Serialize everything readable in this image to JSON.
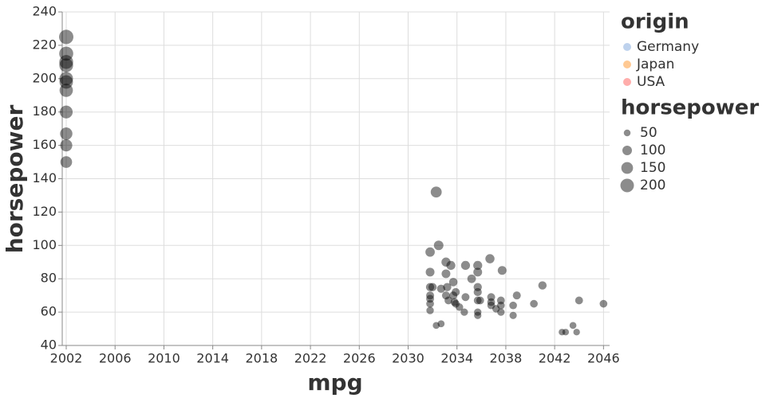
{
  "chart_data": {
    "type": "scatter",
    "x_label": "mpg",
    "y_label": "horsepower",
    "x": [
      2002,
      2002,
      2002,
      2002,
      2002,
      2002,
      2002,
      2002,
      2002,
      2002,
      2002,
      2031.8,
      2032.3,
      2032.5,
      2031.8,
      2031.8,
      2032.0,
      2031.8,
      2031.8,
      2031.8,
      2031.8,
      2032.3,
      2032.7,
      2032.7,
      2033.1,
      2033.1,
      2033.2,
      2033.1,
      2033.3,
      2033.5,
      2033.7,
      2033.7,
      2033.8,
      2033.9,
      2033.9,
      2034.2,
      2034.6,
      2034.7,
      2034.7,
      2035.2,
      2035.7,
      2035.7,
      2035.7,
      2035.7,
      2035.7,
      2035.7,
      2035.7,
      2035.9,
      2036.7,
      2036.8,
      2036.8,
      2036.8,
      2037.2,
      2037.6,
      2037.6,
      2037.6,
      2037.7,
      2038.6,
      2038.6,
      2038.9,
      2040.3,
      2041.0,
      2042.6,
      2042.9,
      2043.5,
      2043.8,
      2044.0,
      2046.0
    ],
    "values": [
      225,
      215,
      210,
      208,
      200,
      198,
      193,
      180,
      167,
      160,
      150,
      96,
      132,
      100,
      84,
      75,
      75,
      70,
      68,
      65,
      61,
      52,
      53,
      74,
      90,
      83,
      75,
      70,
      67,
      88,
      78,
      70,
      66,
      72,
      65,
      63,
      60,
      88,
      69,
      80,
      88,
      84,
      75,
      72,
      67,
      60,
      58,
      67,
      92,
      69,
      66,
      64,
      62,
      67,
      64,
      60,
      85,
      64,
      58,
      70,
      65,
      76,
      48,
      48,
      52,
      48,
      67,
      65
    ],
    "point_color": "#000000",
    "xlim": [
      2002,
      2046.5
    ],
    "xticks": [
      2002,
      2006,
      2010,
      2014,
      2018,
      2022,
      2026,
      2030,
      2034,
      2038,
      2042,
      2046
    ],
    "ylim": [
      40,
      240
    ],
    "yticks": [
      40,
      60,
      80,
      100,
      120,
      140,
      160,
      180,
      200,
      220,
      240
    ],
    "grid": true,
    "color_legend": {
      "title": "origin",
      "items": [
        {
          "name": "Germany",
          "color": "#aec7e8"
        },
        {
          "name": "Japan",
          "color": "#ffbb78"
        },
        {
          "name": "USA",
          "color": "#ff9896"
        }
      ]
    },
    "size_legend": {
      "title": "horsepower",
      "values": [
        50,
        100,
        150,
        200
      ]
    }
  }
}
